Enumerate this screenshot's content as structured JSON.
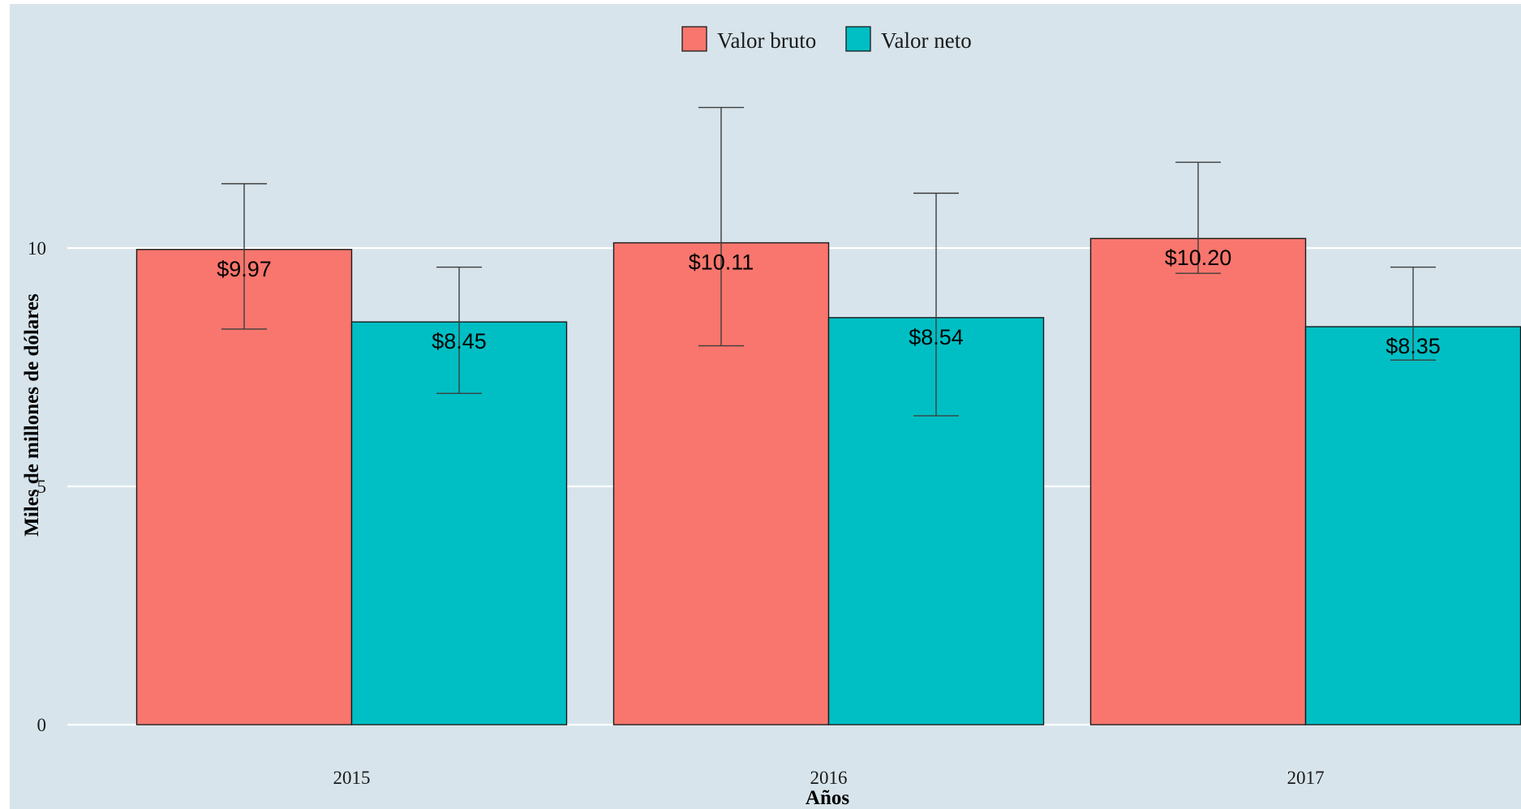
{
  "chart_data": {
    "type": "bar",
    "categories": [
      "2015",
      "2016",
      "2017"
    ],
    "series": [
      {
        "name": "Valor bruto",
        "color": "#f8766d",
        "values": [
          9.97,
          10.11,
          10.2
        ],
        "labels": [
          "$9.97",
          "$10.11",
          "$10.20"
        ],
        "error_low": [
          8.3,
          7.95,
          9.47
        ],
        "error_high": [
          11.35,
          12.95,
          11.8
        ]
      },
      {
        "name": "Valor neto",
        "color": "#00bfc4",
        "values": [
          8.45,
          8.54,
          8.35
        ],
        "labels": [
          "$8.45",
          "$8.54",
          "$8.35"
        ],
        "error_low": [
          6.95,
          6.48,
          7.65
        ],
        "error_high": [
          9.6,
          11.15,
          9.6
        ]
      }
    ],
    "xlabel": "Años",
    "ylabel": "Miles de millones de dólares",
    "yticks": [
      "0",
      "5",
      "10"
    ],
    "ylim": [
      0,
      15.5
    ],
    "grid": "horizontal major lines",
    "legend_position": "top",
    "panel_background": "#d7e4eb"
  }
}
